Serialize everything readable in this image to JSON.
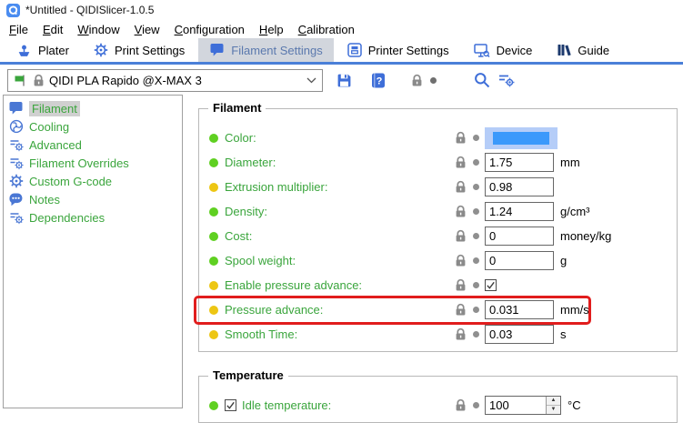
{
  "window": {
    "title": "*Untitled - QIDISlicer-1.0.5",
    "app_icon": "app-logo-icon"
  },
  "menu": {
    "items": [
      "File",
      "Edit",
      "Window",
      "View",
      "Configuration",
      "Help",
      "Calibration"
    ]
  },
  "tabs": [
    {
      "label": "Plater",
      "icon": "plater-icon",
      "active": false
    },
    {
      "label": "Print Settings",
      "icon": "gear-icon",
      "active": false
    },
    {
      "label": "Filament Settings",
      "icon": "filament-bubble-icon",
      "active": true
    },
    {
      "label": "Printer Settings",
      "icon": "printer-icon",
      "active": false
    },
    {
      "label": "Device",
      "icon": "device-monitor-icon",
      "active": false
    },
    {
      "label": "Guide",
      "icon": "guide-books-icon",
      "active": false
    }
  ],
  "preset": {
    "value": "QIDI PLA Rapido @X-MAX 3",
    "icons": [
      "green-flag-icon",
      "lock-icon",
      "chevron-down-icon"
    ]
  },
  "toolbar": [
    {
      "name": "save-preset-button",
      "icon": "save-icon"
    },
    {
      "name": "help-button",
      "icon": "help-book-icon"
    },
    {
      "name": "lock-toggle-button",
      "icon": "lock-icon",
      "dot": true
    },
    {
      "name": "search-button",
      "icon": "search-icon"
    },
    {
      "name": "compare-presets-button",
      "icon": "compare-settings-icon"
    }
  ],
  "sidebar": {
    "items": [
      {
        "label": "Filament",
        "icon": "filament-bubble-icon",
        "selected": true
      },
      {
        "label": "Cooling",
        "icon": "fan-icon",
        "selected": false
      },
      {
        "label": "Advanced",
        "icon": "sliders-gear-icon",
        "selected": false
      },
      {
        "label": "Filament Overrides",
        "icon": "sliders-gear-icon",
        "selected": false
      },
      {
        "label": "Custom G-code",
        "icon": "gear-icon",
        "selected": false
      },
      {
        "label": "Notes",
        "icon": "notes-bubble-icon",
        "selected": false
      },
      {
        "label": "Dependencies",
        "icon": "sliders-gear-icon",
        "selected": false
      }
    ]
  },
  "sections": [
    {
      "title": "Filament",
      "rows": [
        {
          "label": "Color:",
          "dot": "green",
          "control": "color",
          "unit": ""
        },
        {
          "label": "Diameter:",
          "dot": "green",
          "control": "input",
          "value": "1.75",
          "unit": "mm"
        },
        {
          "label": "Extrusion multiplier:",
          "dot": "yellow",
          "control": "input",
          "value": "0.98",
          "unit": ""
        },
        {
          "label": "Density:",
          "dot": "green",
          "control": "input",
          "value": "1.24",
          "unit": "g/cm³"
        },
        {
          "label": "Cost:",
          "dot": "green",
          "control": "input",
          "value": "0",
          "unit": "money/kg"
        },
        {
          "label": "Spool weight:",
          "dot": "green",
          "control": "input",
          "value": "0",
          "unit": "g"
        },
        {
          "label": "Enable pressure advance:",
          "dot": "yellow",
          "control": "checkbox",
          "checked": true,
          "unit": ""
        },
        {
          "label": "Pressure advance:",
          "dot": "yellow",
          "control": "input",
          "value": "0.031",
          "unit": "mm/s",
          "highlighted": true
        },
        {
          "label": "Smooth Time:",
          "dot": "yellow",
          "control": "input",
          "value": "0.03",
          "unit": "s"
        }
      ]
    },
    {
      "title": "Temperature",
      "rows": [
        {
          "label": "Idle temperature:",
          "dot": "green",
          "pre_checkbox": true,
          "pre_checked": true,
          "control": "spinner",
          "value": "100",
          "unit": "°C"
        }
      ]
    }
  ],
  "colors": {
    "accent": "#4a80d8",
    "icon_blue": "#3e6ed8",
    "green_label": "#3aa53c",
    "dot_green": "#5fd021",
    "dot_yellow": "#edc613",
    "swatch_bg": "#b5cdf8",
    "swatch_fg": "#3b99fb",
    "highlight_red": "#e11d1d",
    "active_tab_bg": "#d2d6dd",
    "active_tab_text": "#5b79ae",
    "sidebar_selected_bg": "#d0d0d0"
  }
}
